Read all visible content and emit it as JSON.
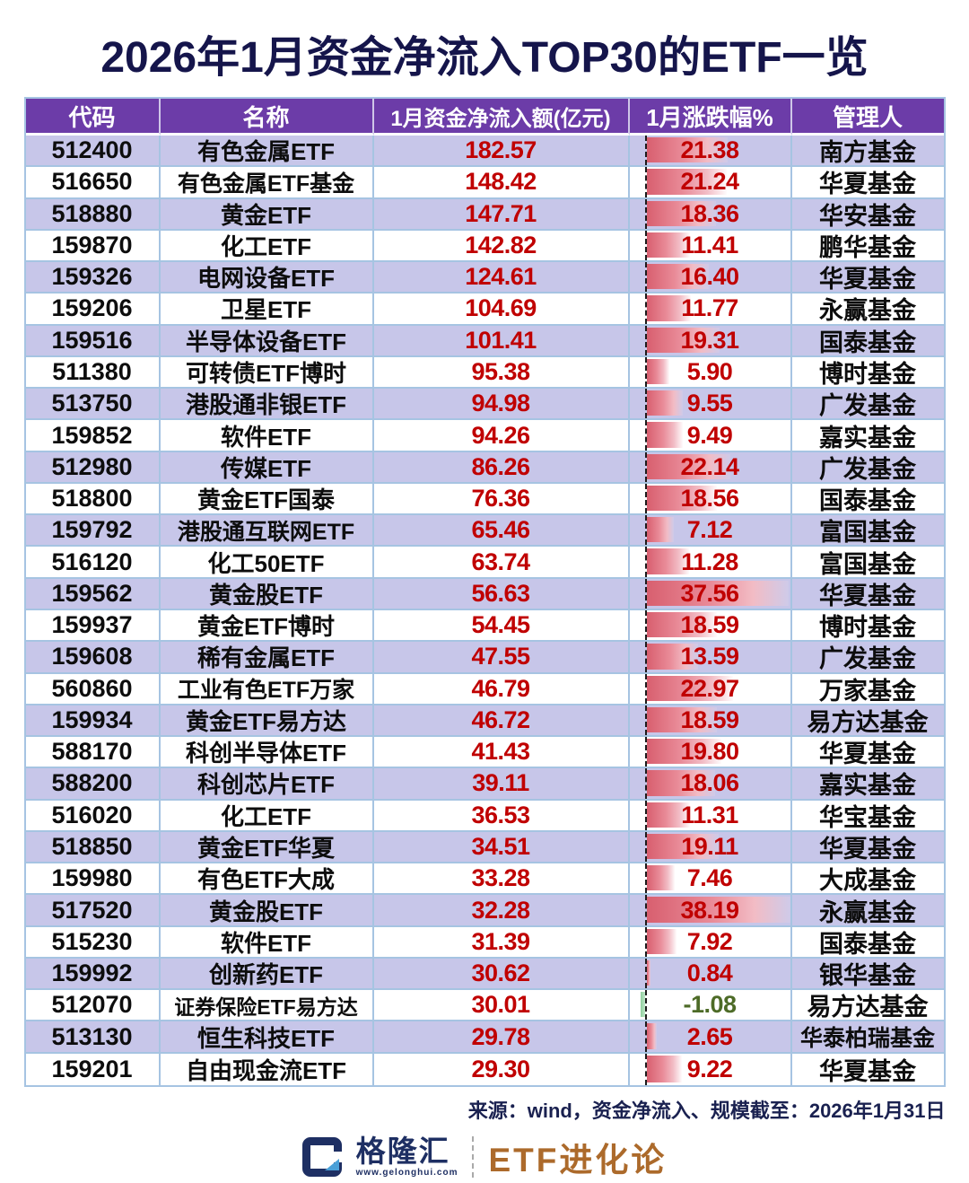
{
  "title": "2026年1月资金净流入TOP30的ETF一览",
  "footer": {
    "source": "来源：wind，资金净流入、规模截至：2026年1月31日"
  },
  "logo": {
    "brand": "格隆汇",
    "url_text": "www.gelonghui.com",
    "channel": "ETF进化论"
  },
  "colors": {
    "header_bg": "#6c3ca8",
    "row_alt_bg": "#c7c6e9",
    "grid_border": "#a6c4e2",
    "value_red": "#c00000",
    "value_green": "#4d6b27",
    "bar_red": "#d85f6f",
    "bar_green": "#8fcf9e",
    "title_navy": "#15154b",
    "brand_navy": "#1e2f63",
    "channel_bronze": "#ac6a2b"
  },
  "chart_data": {
    "type": "table",
    "title": "2026年1月资金净流入TOP30的ETF一览",
    "columns": [
      "代码",
      "名称",
      "1月资金净流入额(亿元)",
      "1月涨跌幅%",
      "管理人"
    ],
    "bar_column": "1月涨跌幅%",
    "bar_axis_max": 40,
    "rows": [
      [
        "512400",
        "有色金属ETF",
        "182.57",
        "21.38",
        "南方基金"
      ],
      [
        "516650",
        "有色金属ETF基金",
        "148.42",
        "21.24",
        "华夏基金"
      ],
      [
        "518880",
        "黄金ETF",
        "147.71",
        "18.36",
        "华安基金"
      ],
      [
        "159870",
        "化工ETF",
        "142.82",
        "11.41",
        "鹏华基金"
      ],
      [
        "159326",
        "电网设备ETF",
        "124.61",
        "16.40",
        "华夏基金"
      ],
      [
        "159206",
        "卫星ETF",
        "104.69",
        "11.77",
        "永赢基金"
      ],
      [
        "159516",
        "半导体设备ETF",
        "101.41",
        "19.31",
        "国泰基金"
      ],
      [
        "511380",
        "可转债ETF博时",
        "95.38",
        "5.90",
        "博时基金"
      ],
      [
        "513750",
        "港股通非银ETF",
        "94.98",
        "9.55",
        "广发基金"
      ],
      [
        "159852",
        "软件ETF",
        "94.26",
        "9.49",
        "嘉实基金"
      ],
      [
        "512980",
        "传媒ETF",
        "86.26",
        "22.14",
        "广发基金"
      ],
      [
        "518800",
        "黄金ETF国泰",
        "76.36",
        "18.56",
        "国泰基金"
      ],
      [
        "159792",
        "港股通互联网ETF",
        "65.46",
        "7.12",
        "富国基金"
      ],
      [
        "516120",
        "化工50ETF",
        "63.74",
        "11.28",
        "富国基金"
      ],
      [
        "159562",
        "黄金股ETF",
        "56.63",
        "37.56",
        "华夏基金"
      ],
      [
        "159937",
        "黄金ETF博时",
        "54.45",
        "18.59",
        "博时基金"
      ],
      [
        "159608",
        "稀有金属ETF",
        "47.55",
        "13.59",
        "广发基金"
      ],
      [
        "560860",
        "工业有色ETF万家",
        "46.79",
        "22.97",
        "万家基金"
      ],
      [
        "159934",
        "黄金ETF易方达",
        "46.72",
        "18.59",
        "易方达基金"
      ],
      [
        "588170",
        "科创半导体ETF",
        "41.43",
        "19.80",
        "华夏基金"
      ],
      [
        "588200",
        "科创芯片ETF",
        "39.11",
        "18.06",
        "嘉实基金"
      ],
      [
        "516020",
        "化工ETF",
        "36.53",
        "11.31",
        "华宝基金"
      ],
      [
        "518850",
        "黄金ETF华夏",
        "34.51",
        "19.11",
        "华夏基金"
      ],
      [
        "159980",
        "有色ETF大成",
        "33.28",
        "7.46",
        "大成基金"
      ],
      [
        "517520",
        "黄金股ETF",
        "32.28",
        "38.19",
        "永赢基金"
      ],
      [
        "515230",
        "软件ETF",
        "31.39",
        "7.92",
        "国泰基金"
      ],
      [
        "159992",
        "创新药ETF",
        "30.62",
        "0.84",
        "银华基金"
      ],
      [
        "512070",
        "证券保险ETF易方达",
        "30.01",
        "-1.08",
        "易方达基金"
      ],
      [
        "513130",
        "恒生科技ETF",
        "29.78",
        "2.65",
        "华泰柏瑞基金"
      ],
      [
        "159201",
        "自由现金流ETF",
        "29.30",
        "9.22",
        "华夏基金"
      ]
    ]
  }
}
